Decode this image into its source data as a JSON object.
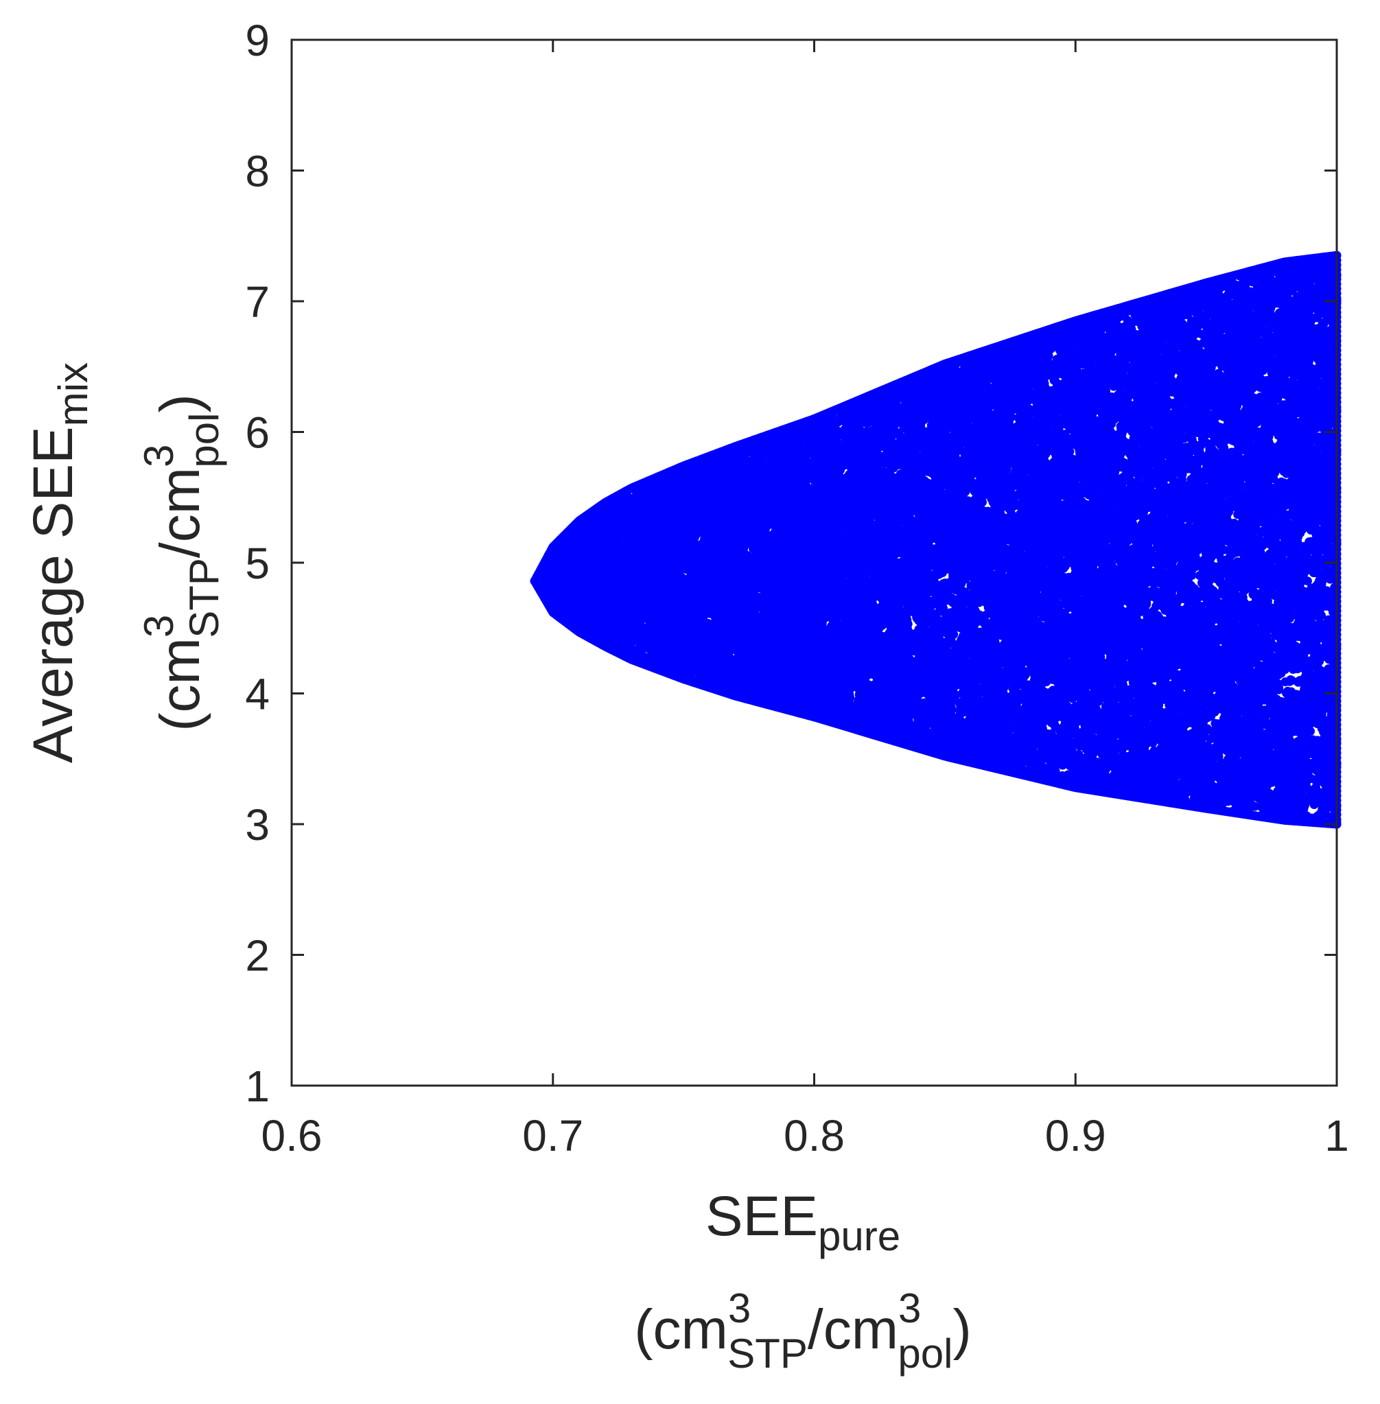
{
  "chart_data": {
    "type": "scatter",
    "xlabel": {
      "line1": {
        "base": "SEE",
        "sub": "pure"
      },
      "line2": {
        "open": "(cm",
        "sup1": "3",
        "sub1": "STP",
        "mid": "/cm",
        "sup2": "3",
        "sub2": "pol",
        "close": ")"
      }
    },
    "ylabel": {
      "line1": {
        "base": "Average SEE",
        "sub": "mix"
      },
      "line2": {
        "open": "(cm",
        "sup1": "3",
        "sub1": "STP",
        "mid": "/cm",
        "sup2": "3",
        "sub2": "pol",
        "close": ")"
      }
    },
    "xlim": [
      0.6,
      1.0
    ],
    "ylim": [
      1,
      9
    ],
    "xticks": [
      0.6,
      0.7,
      0.8,
      0.9,
      1.0
    ],
    "xtick_labels": [
      "0.6",
      "0.7",
      "0.8",
      "0.9",
      "1"
    ],
    "yticks": [
      1,
      2,
      3,
      4,
      5,
      6,
      7,
      8,
      9
    ],
    "ytick_labels": [
      "1",
      "2",
      "3",
      "4",
      "5",
      "6",
      "7",
      "8",
      "9"
    ],
    "grid": false,
    "marker_color": "#0000ff",
    "region": {
      "description_of_fill": "densely packed points",
      "apex": {
        "x": 0.693,
        "y": 4.86
      },
      "upper_boundary": [
        [
          0.693,
          4.86
        ],
        [
          0.7,
          5.12
        ],
        [
          0.71,
          5.32
        ],
        [
          0.72,
          5.46
        ],
        [
          0.73,
          5.57
        ],
        [
          0.75,
          5.74
        ],
        [
          0.77,
          5.89
        ],
        [
          0.8,
          6.1
        ],
        [
          0.85,
          6.52
        ],
        [
          0.9,
          6.85
        ],
        [
          0.95,
          7.14
        ],
        [
          0.98,
          7.3
        ],
        [
          1.0,
          7.35
        ]
      ],
      "lower_boundary": [
        [
          0.693,
          4.86
        ],
        [
          0.7,
          4.62
        ],
        [
          0.71,
          4.47
        ],
        [
          0.72,
          4.36
        ],
        [
          0.73,
          4.26
        ],
        [
          0.75,
          4.11
        ],
        [
          0.77,
          3.98
        ],
        [
          0.8,
          3.82
        ],
        [
          0.85,
          3.52
        ],
        [
          0.9,
          3.28
        ],
        [
          0.95,
          3.12
        ],
        [
          0.98,
          3.03
        ],
        [
          1.0,
          3.0
        ]
      ]
    }
  }
}
